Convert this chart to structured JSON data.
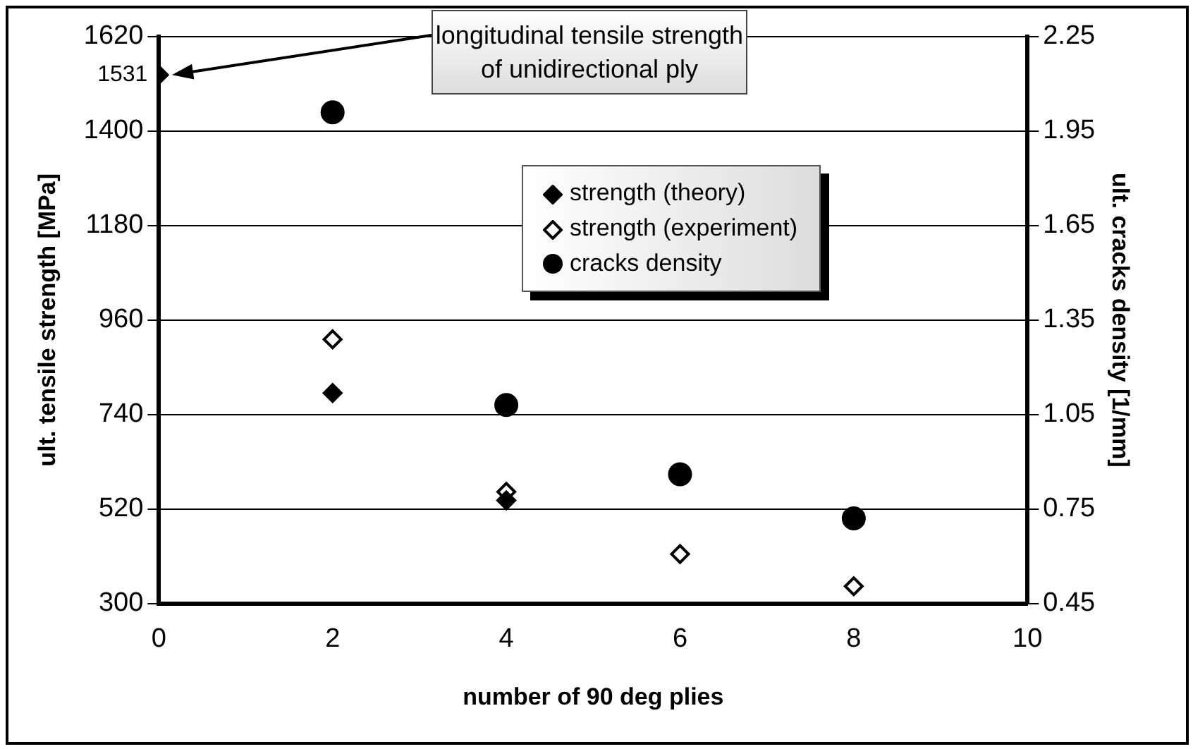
{
  "chart_data": {
    "type": "scatter",
    "xlabel": "number of 90 deg plies",
    "ylabel": "ult. tensile strength [MPa]",
    "y2label": "ult. cracks density [1/mm]",
    "xlim": [
      0,
      10
    ],
    "xticks": [
      0,
      2,
      4,
      6,
      8,
      10
    ],
    "ylim": [
      300,
      1620
    ],
    "yticks": [
      300,
      520,
      740,
      960,
      1180,
      1400,
      1620
    ],
    "y2lim": [
      0.45,
      2.25
    ],
    "y2ticks": [
      0.45,
      0.75,
      1.05,
      1.35,
      1.65,
      1.95,
      2.25
    ],
    "grid": "y",
    "legend": "top right",
    "annotations": [
      "longitudinal tensile strength of unidirectional ply"
    ],
    "series": [
      {
        "name": "strength (theory)",
        "color": "#000000",
        "marker": "diamond",
        "x": [
          0,
          2,
          4
        ],
        "values": [
          1531,
          790,
          540
        ],
        "value_labels": [
          "1531",
          null,
          null
        ]
      },
      {
        "name": "strength (experiment)",
        "color": "#ffffff",
        "marker": "diamond",
        "x": [
          2,
          4,
          6,
          8
        ],
        "values": [
          915,
          560,
          415,
          340
        ]
      },
      {
        "name": "cracks density",
        "color": "#000000",
        "marker": "circle",
        "axis": "y2",
        "x": [
          2,
          4,
          6,
          8
        ],
        "values": [
          2.01,
          1.08,
          0.86,
          0.72
        ]
      }
    ]
  }
}
